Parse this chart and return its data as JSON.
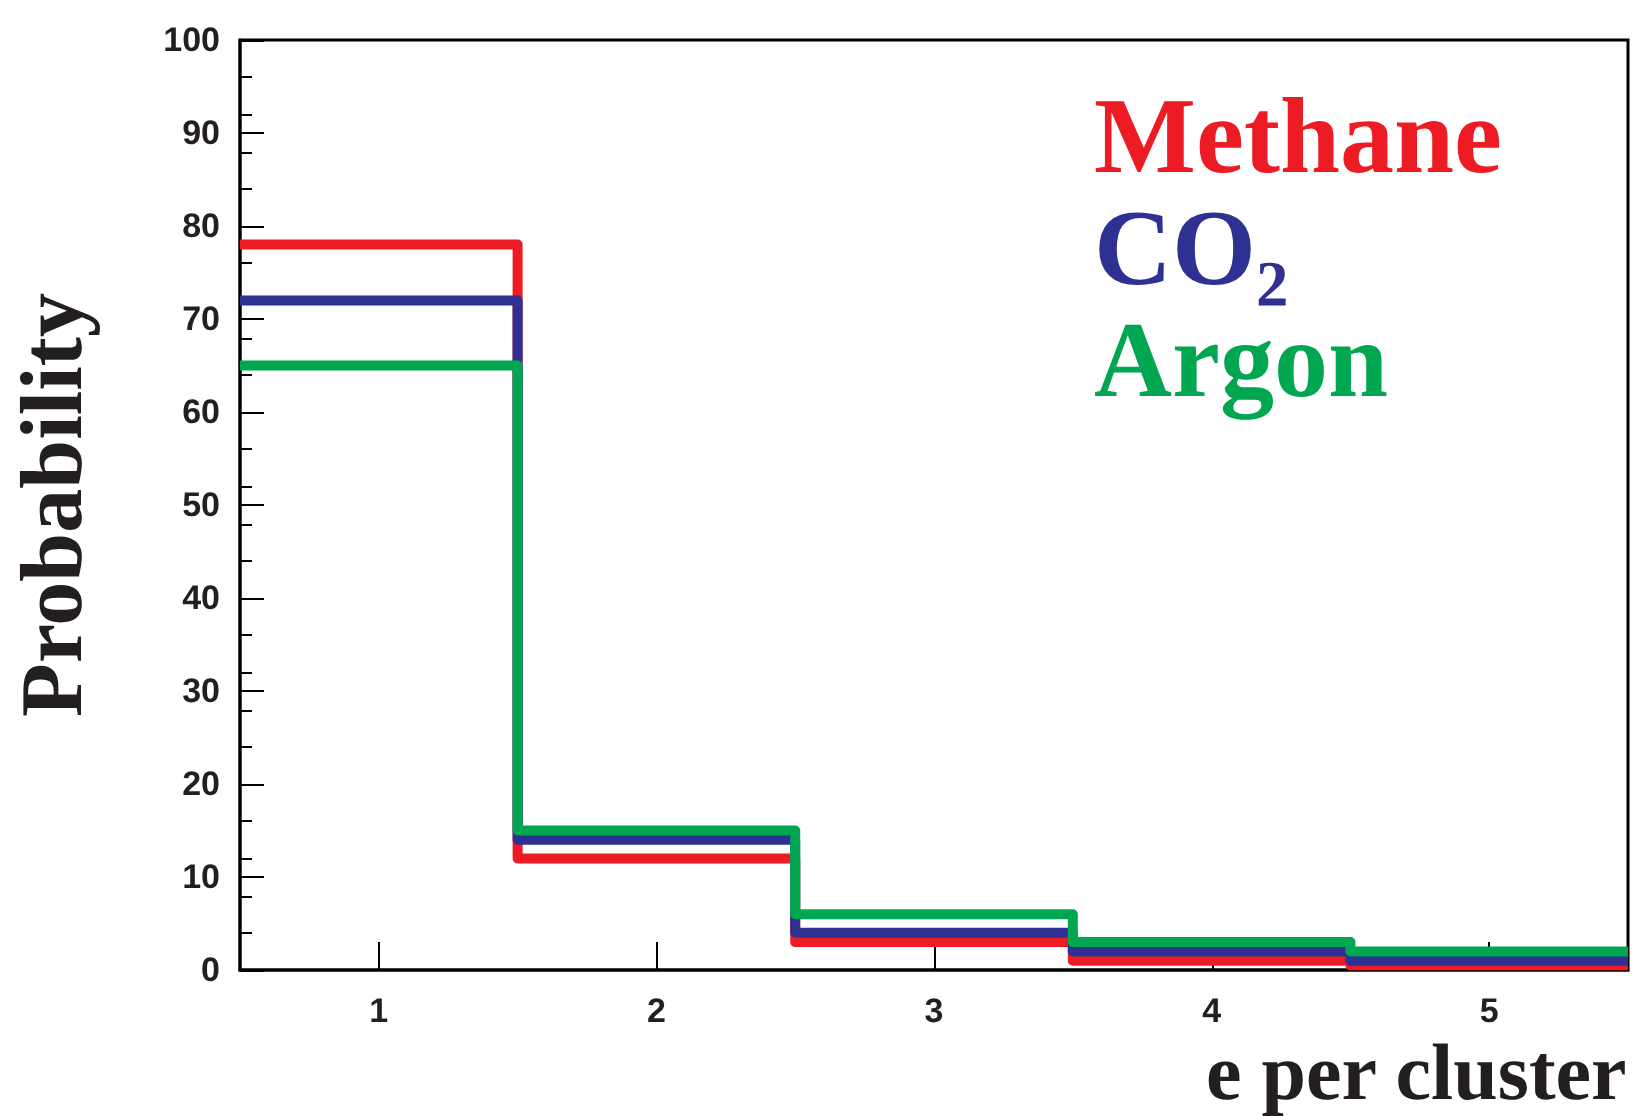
{
  "chart_data": {
    "type": "histogram",
    "xlabel": "e per cluster",
    "ylabel": "Probability",
    "bins": [
      0.5,
      1.5,
      2.5,
      3.5,
      4.5,
      5.5
    ],
    "series": [
      {
        "name": "Methane",
        "color": "#ed1c24",
        "values": [
          78,
          12,
          3,
          1,
          0.5
        ]
      },
      {
        "name": "CO₂",
        "color": "#2e3192",
        "values": [
          72,
          14,
          4,
          2,
          1
        ]
      },
      {
        "name": "Argon",
        "color": "#00a650",
        "values": [
          65,
          15,
          6,
          3,
          2
        ]
      }
    ],
    "xlim": [
      0.5,
      5.5
    ],
    "xticks": [
      1,
      2,
      3,
      4,
      5
    ],
    "ylim": [
      0,
      100
    ],
    "yticks": [
      0,
      10,
      20,
      30,
      40,
      50,
      60,
      70,
      80,
      90,
      100
    ],
    "legend": "top right",
    "grid": false,
    "line_style": "solid"
  }
}
